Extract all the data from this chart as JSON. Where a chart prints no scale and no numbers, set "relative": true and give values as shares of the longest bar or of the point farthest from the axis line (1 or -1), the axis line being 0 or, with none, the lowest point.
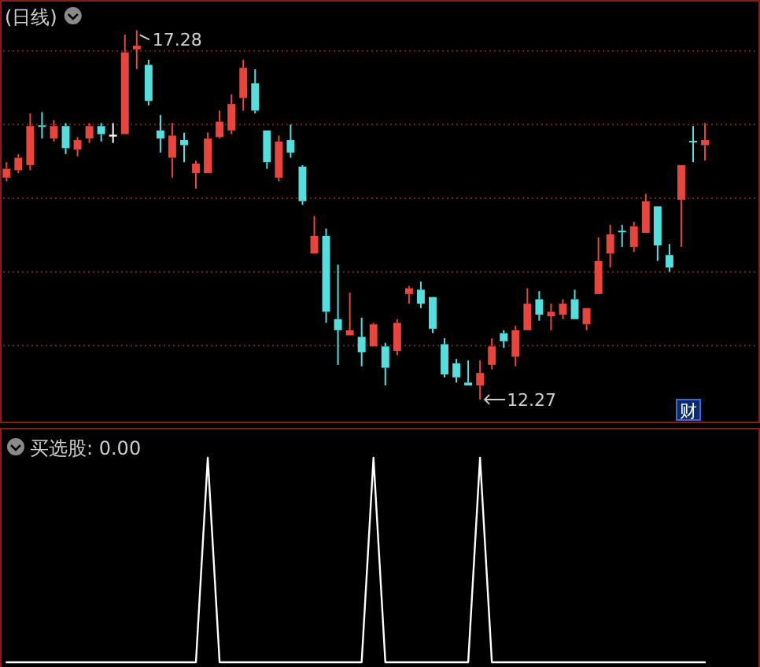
{
  "chart_data": [
    {
      "type": "candlestick",
      "title": "(日线)",
      "categories": [
        null,
        null,
        null,
        null,
        null,
        null,
        null,
        null,
        null,
        null,
        null,
        null,
        null,
        null,
        null,
        null,
        null,
        null,
        null,
        null,
        null,
        null,
        null,
        null,
        null,
        null,
        null,
        null,
        null,
        null,
        null,
        null,
        null,
        null,
        null,
        null,
        null,
        null,
        null,
        null,
        null,
        null,
        null,
        null,
        null,
        null,
        null,
        null,
        null,
        null,
        null,
        null,
        null,
        null,
        null,
        null,
        null,
        null,
        null,
        null
      ],
      "ohlc": [
        [
          15.28,
          15.49,
          15.23,
          15.4
        ],
        [
          15.38,
          15.6,
          15.34,
          15.55
        ],
        [
          15.45,
          16.15,
          15.38,
          15.98
        ],
        [
          15.99,
          16.17,
          15.81,
          15.97
        ],
        [
          15.81,
          16.06,
          15.77,
          15.98
        ],
        [
          15.98,
          16.02,
          15.6,
          15.68
        ],
        [
          15.66,
          15.83,
          15.57,
          15.79
        ],
        [
          15.81,
          16.02,
          15.75,
          15.98
        ],
        [
          15.98,
          16.02,
          15.77,
          15.87
        ],
        [
          15.85,
          16.02,
          15.75,
          15.85
        ],
        [
          15.87,
          17.22,
          15.87,
          16.98
        ],
        [
          17.02,
          17.28,
          16.75,
          17.07
        ],
        [
          16.81,
          16.88,
          16.26,
          16.32
        ],
        [
          15.92,
          16.13,
          15.62,
          15.81
        ],
        [
          15.55,
          16.02,
          15.28,
          15.85
        ],
        [
          15.79,
          15.89,
          15.49,
          15.72
        ],
        [
          15.34,
          15.51,
          15.13,
          15.47
        ],
        [
          15.34,
          15.89,
          15.34,
          15.81
        ],
        [
          15.83,
          16.19,
          15.81,
          16.04
        ],
        [
          15.92,
          16.41,
          15.87,
          16.28
        ],
        [
          16.36,
          16.88,
          16.19,
          16.77
        ],
        [
          16.56,
          16.75,
          16.15,
          16.19
        ],
        [
          15.92,
          15.92,
          15.4,
          15.49
        ],
        [
          15.28,
          15.85,
          15.23,
          15.77
        ],
        [
          15.79,
          16.0,
          15.55,
          15.62
        ],
        [
          15.43,
          15.45,
          14.91,
          14.96
        ],
        [
          14.25,
          14.76,
          14.25,
          14.49
        ],
        [
          14.49,
          14.59,
          13.31,
          13.46
        ],
        [
          13.36,
          14.1,
          12.74,
          13.21
        ],
        [
          13.14,
          13.72,
          13.14,
          13.21
        ],
        [
          13.12,
          13.38,
          12.72,
          12.91
        ],
        [
          12.99,
          13.31,
          12.99,
          13.29
        ],
        [
          12.99,
          13.04,
          12.46,
          12.7
        ],
        [
          12.93,
          13.36,
          12.87,
          13.31
        ],
        [
          13.7,
          13.81,
          13.57,
          13.78
        ],
        [
          13.76,
          13.87,
          13.51,
          13.57
        ],
        [
          13.66,
          13.66,
          13.17,
          13.23
        ],
        [
          13.02,
          13.1,
          12.57,
          12.61
        ],
        [
          12.76,
          12.82,
          12.5,
          12.57
        ],
        [
          12.5,
          12.8,
          12.46,
          12.46
        ],
        [
          12.46,
          12.8,
          12.27,
          12.63
        ],
        [
          12.74,
          13.1,
          12.68,
          12.99
        ],
        [
          13.17,
          13.21,
          12.97,
          13.06
        ],
        [
          12.85,
          13.27,
          12.72,
          13.21
        ],
        [
          13.21,
          13.78,
          13.21,
          13.57
        ],
        [
          13.63,
          13.74,
          13.34,
          13.42
        ],
        [
          13.4,
          13.57,
          13.21,
          13.46
        ],
        [
          13.42,
          13.63,
          13.36,
          13.57
        ],
        [
          13.63,
          13.76,
          13.36,
          13.36
        ],
        [
          13.29,
          13.51,
          13.21,
          13.51
        ],
        [
          13.7,
          14.47,
          13.7,
          14.15
        ],
        [
          14.25,
          14.64,
          14.06,
          14.51
        ],
        [
          14.56,
          14.64,
          14.34,
          14.54
        ],
        [
          14.34,
          14.68,
          14.27,
          14.62
        ],
        [
          14.53,
          15.06,
          14.53,
          14.96
        ],
        [
          14.89,
          14.89,
          14.15,
          14.36
        ],
        [
          14.23,
          14.38,
          14.0,
          14.06
        ],
        [
          14.98,
          15.45,
          14.34,
          15.45
        ],
        [
          15.78,
          15.98,
          15.49,
          15.76
        ],
        [
          15.72,
          16.02,
          15.51,
          15.79
        ]
      ],
      "ylim": [
        11.97,
        17.69
      ],
      "yticks": [
        {
          "value": 13,
          "label": null
        },
        {
          "value": 14,
          "label": null
        },
        {
          "value": 15,
          "label": null
        },
        {
          "value": 16,
          "label": null
        },
        {
          "value": 17,
          "label": null
        }
      ],
      "grid": "y",
      "tick_labels": false,
      "annotations": [
        "17.28",
        "12.27",
        "财"
      ]
    },
    {
      "type": "line",
      "title": "买选股: 0.00",
      "categories": [
        null,
        null,
        null,
        null,
        null,
        null,
        null,
        null,
        null,
        null,
        null,
        null,
        null,
        null,
        null,
        null,
        null,
        null,
        null,
        null,
        null,
        null,
        null,
        null,
        null,
        null,
        null,
        null,
        null,
        null,
        null,
        null,
        null,
        null,
        null,
        null,
        null,
        null,
        null,
        null,
        null,
        null,
        null,
        null,
        null,
        null,
        null,
        null,
        null,
        null,
        null,
        null,
        null,
        null,
        null,
        null,
        null,
        null,
        null,
        null
      ],
      "series": [
        {
          "color": "#ffffff",
          "values": [
            0,
            0,
            0,
            0,
            0,
            0,
            0,
            0,
            0,
            0,
            0,
            0,
            0,
            0,
            0,
            0,
            0,
            1,
            0,
            0,
            0,
            0,
            0,
            0,
            0,
            0,
            0,
            0,
            0,
            0,
            0,
            1,
            0,
            0,
            0,
            0,
            0,
            0,
            0,
            0,
            1,
            0,
            0,
            0,
            0,
            0,
            0,
            0,
            0,
            0,
            0,
            0,
            0,
            0,
            0,
            0,
            0,
            0,
            0,
            0
          ]
        }
      ],
      "relative": true,
      "tick_labels": false
    }
  ]
}
